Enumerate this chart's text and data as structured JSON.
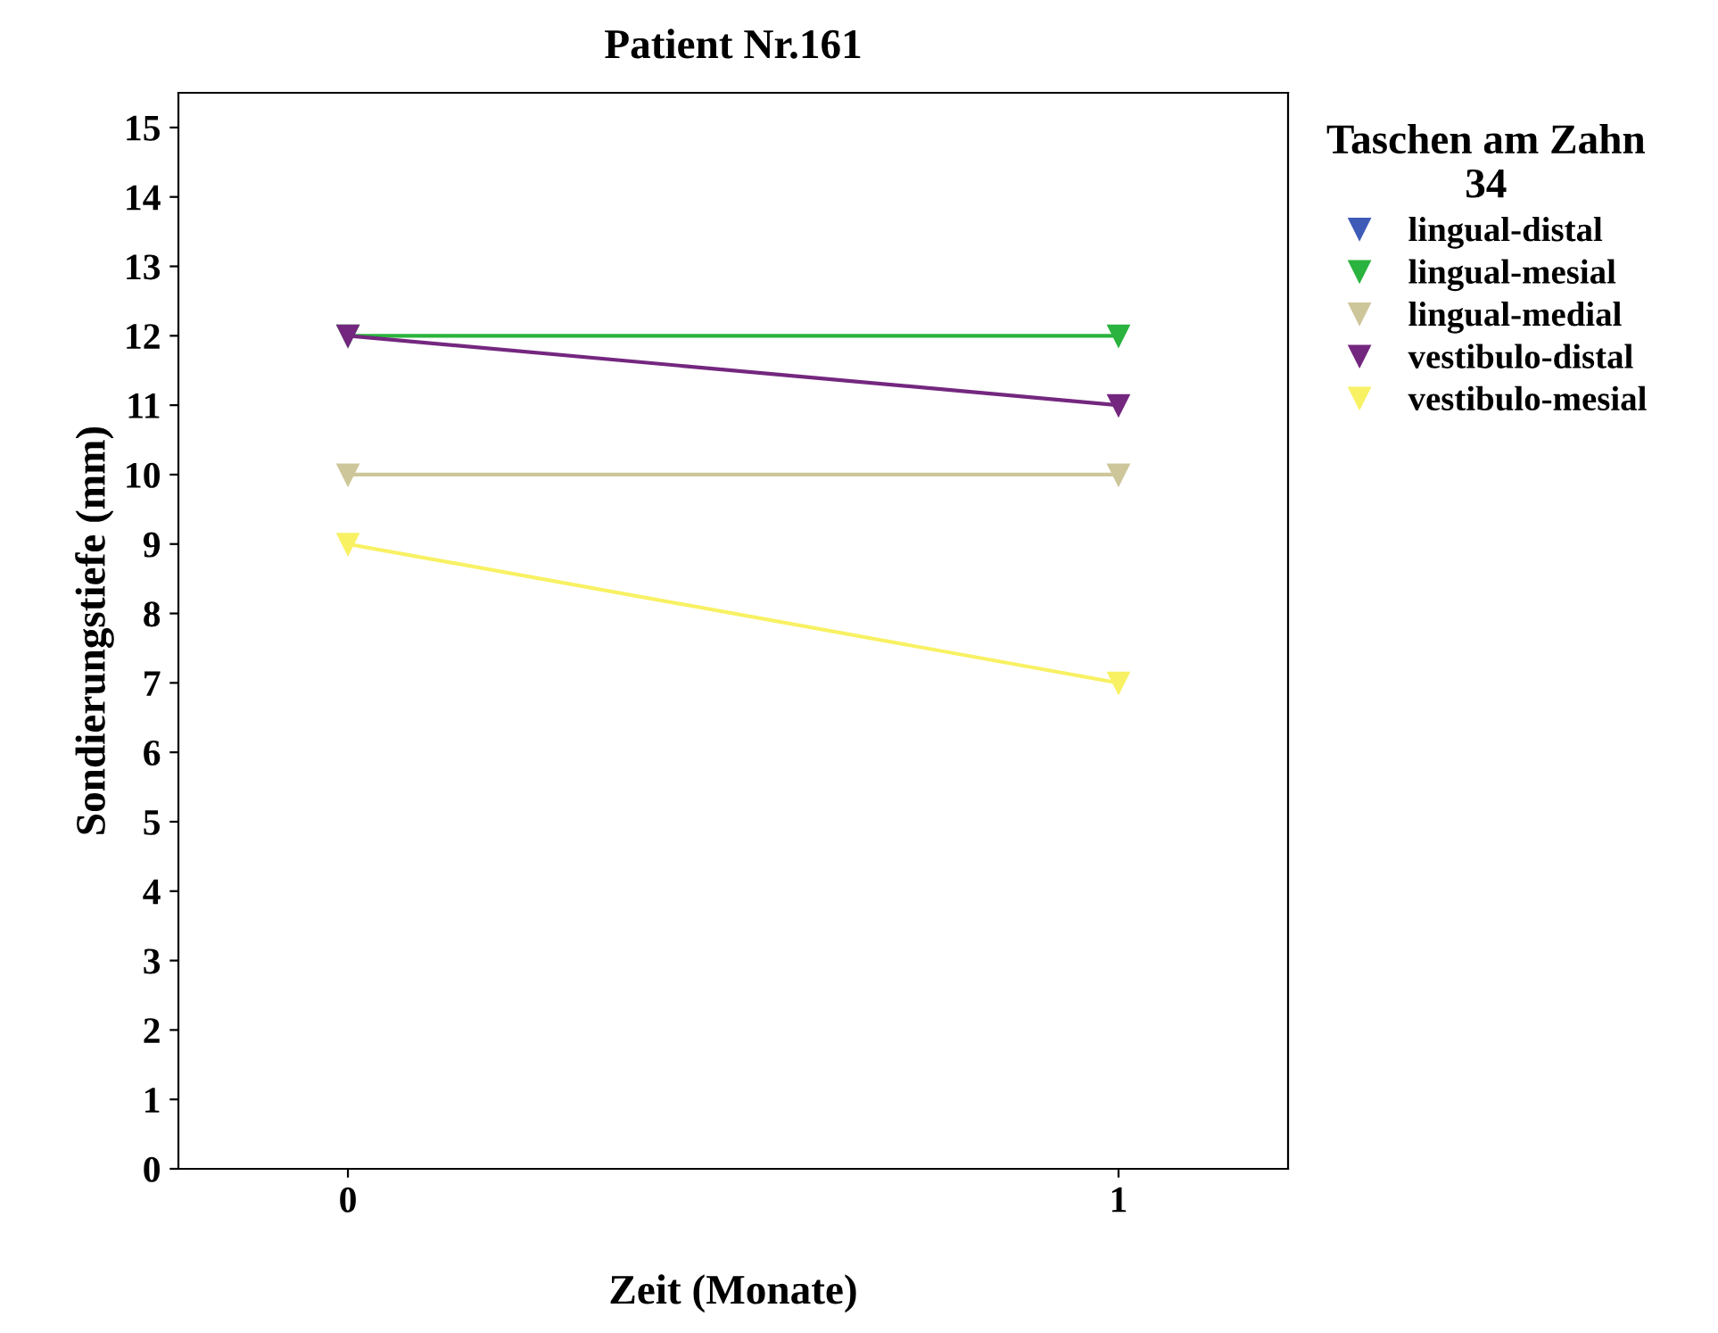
{
  "chart_data": {
    "type": "line",
    "title": "Patient Nr.161",
    "xlabel": "Zeit (Monate)",
    "ylabel": "Sondierungstiefe (mm)",
    "legend_title": "Taschen am Zahn\n34",
    "x": [
      0,
      1
    ],
    "xlim": [
      -0.22,
      1.22
    ],
    "xticks": [
      0,
      1
    ],
    "ylim": [
      0,
      15.5
    ],
    "yticks": [
      0,
      1,
      2,
      3,
      4,
      5,
      6,
      7,
      8,
      9,
      10,
      11,
      12,
      13,
      14,
      15
    ],
    "marker": "triangle",
    "grid": false,
    "legend": "right",
    "series": [
      {
        "name": "lingual-distal",
        "color": "#3e5bb8",
        "values": [
          null,
          null
        ]
      },
      {
        "name": "lingual-mesial",
        "color": "#2ab33e",
        "values": [
          12,
          12
        ]
      },
      {
        "name": "lingual-medial",
        "color": "#cdc69a",
        "values": [
          10,
          10
        ]
      },
      {
        "name": "vestibulo-distal",
        "color": "#74277f",
        "values": [
          12,
          11
        ]
      },
      {
        "name": "vestibulo-mesial",
        "color": "#f8f163",
        "values": [
          9,
          7
        ]
      }
    ]
  }
}
